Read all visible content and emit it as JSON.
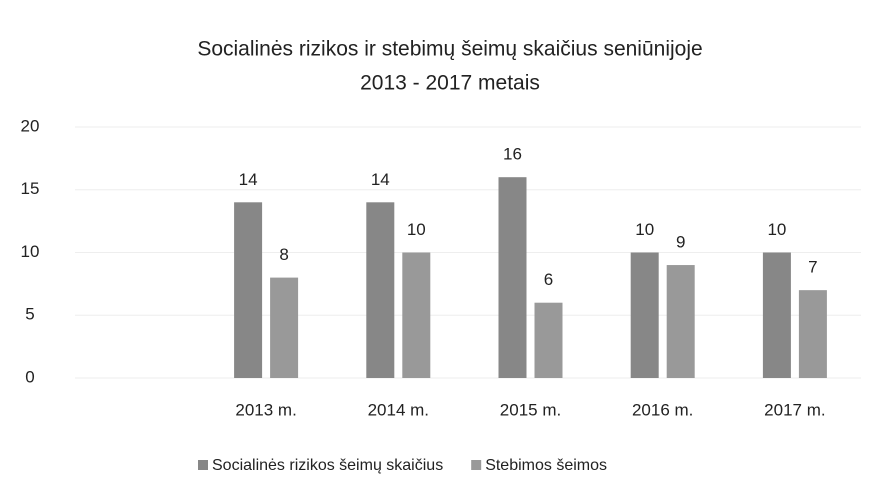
{
  "chart_data": {
    "type": "bar",
    "title": [
      "Socialinės rizikos ir stebimų šeimų skaičius seniūnijoje",
      "2013 - 2017 metais"
    ],
    "categories": [
      "2013 m.",
      "2014 m.",
      "2015 m.",
      "2016 m.",
      "2017 m."
    ],
    "series": [
      {
        "name": "Socialinės rizikos šeimų skaičius",
        "color": "#878787",
        "values": [
          14,
          14,
          16,
          10,
          10
        ]
      },
      {
        "name": "Stebimos šeimos",
        "color": "#999999",
        "values": [
          8,
          10,
          6,
          9,
          7
        ]
      }
    ],
    "ylim": [
      0,
      20
    ],
    "yticks": [
      0,
      5,
      10,
      15,
      20
    ],
    "grid": true,
    "legend": "bottom"
  }
}
